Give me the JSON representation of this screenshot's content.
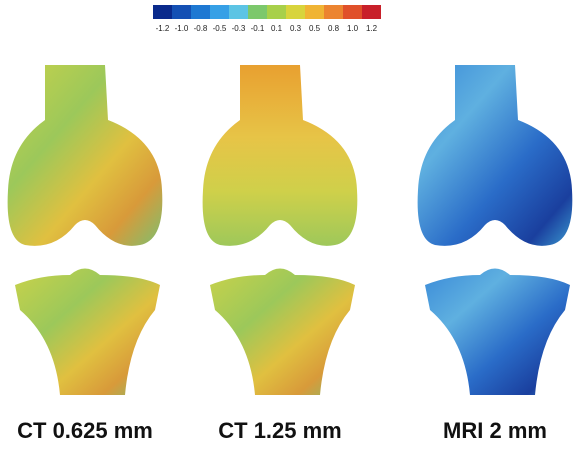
{
  "colorbar": {
    "labels": [
      "-1.2",
      "-1.0",
      "-0.8",
      "-0.5",
      "-0.3",
      "-0.1",
      "0.1",
      "0.3",
      "0.5",
      "0.8",
      "1.0",
      "1.2"
    ]
  },
  "panels": [
    {
      "caption": "CT 0.625 mm"
    },
    {
      "caption": "CT 1.25 mm"
    },
    {
      "caption": "MRI 2 mm"
    }
  ]
}
